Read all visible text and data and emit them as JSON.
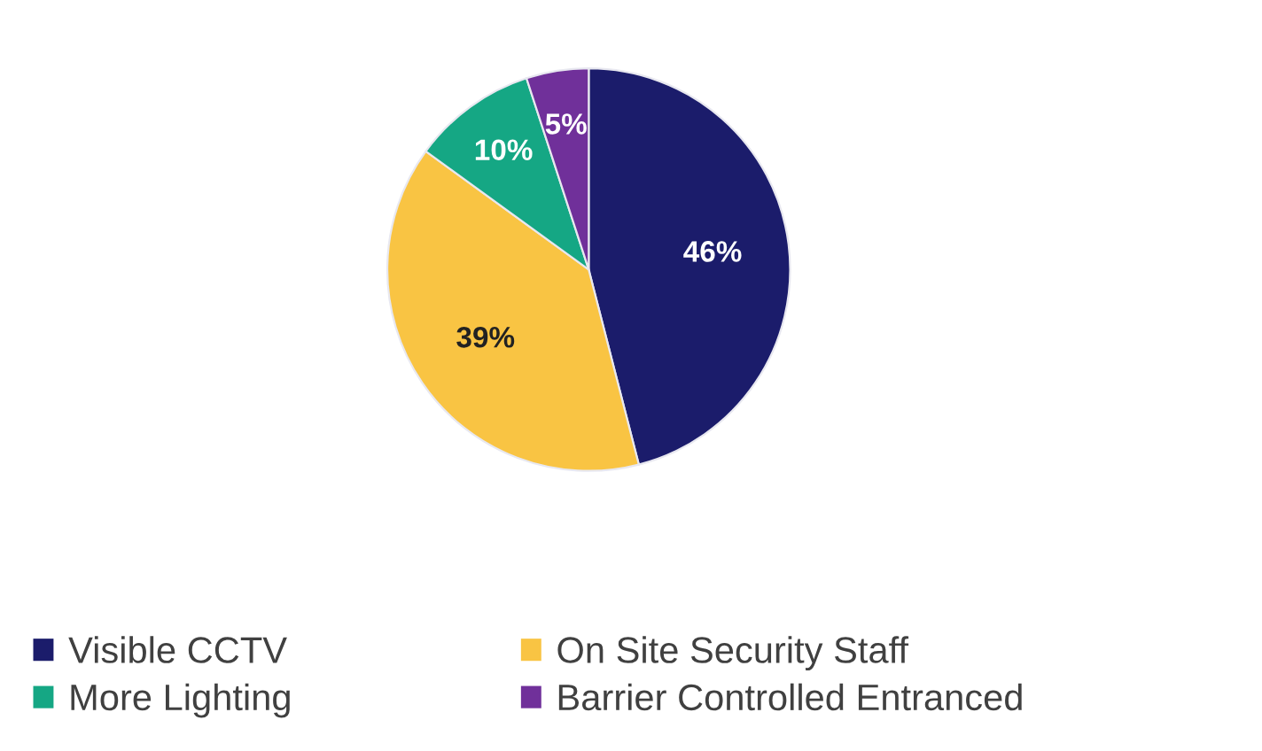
{
  "chart_data": {
    "type": "pie",
    "categories": [
      "Visible CCTV",
      "On Site Security Staff",
      "More Lighting",
      "Barrier Controlled Entranced"
    ],
    "values": [
      46,
      39,
      10,
      5
    ],
    "value_labels": [
      "46%",
      "39%",
      "10%",
      "5%"
    ],
    "colors": [
      "#1b1c6b",
      "#f9c443",
      "#15a784",
      "#70309a"
    ],
    "legend": "bottom"
  }
}
